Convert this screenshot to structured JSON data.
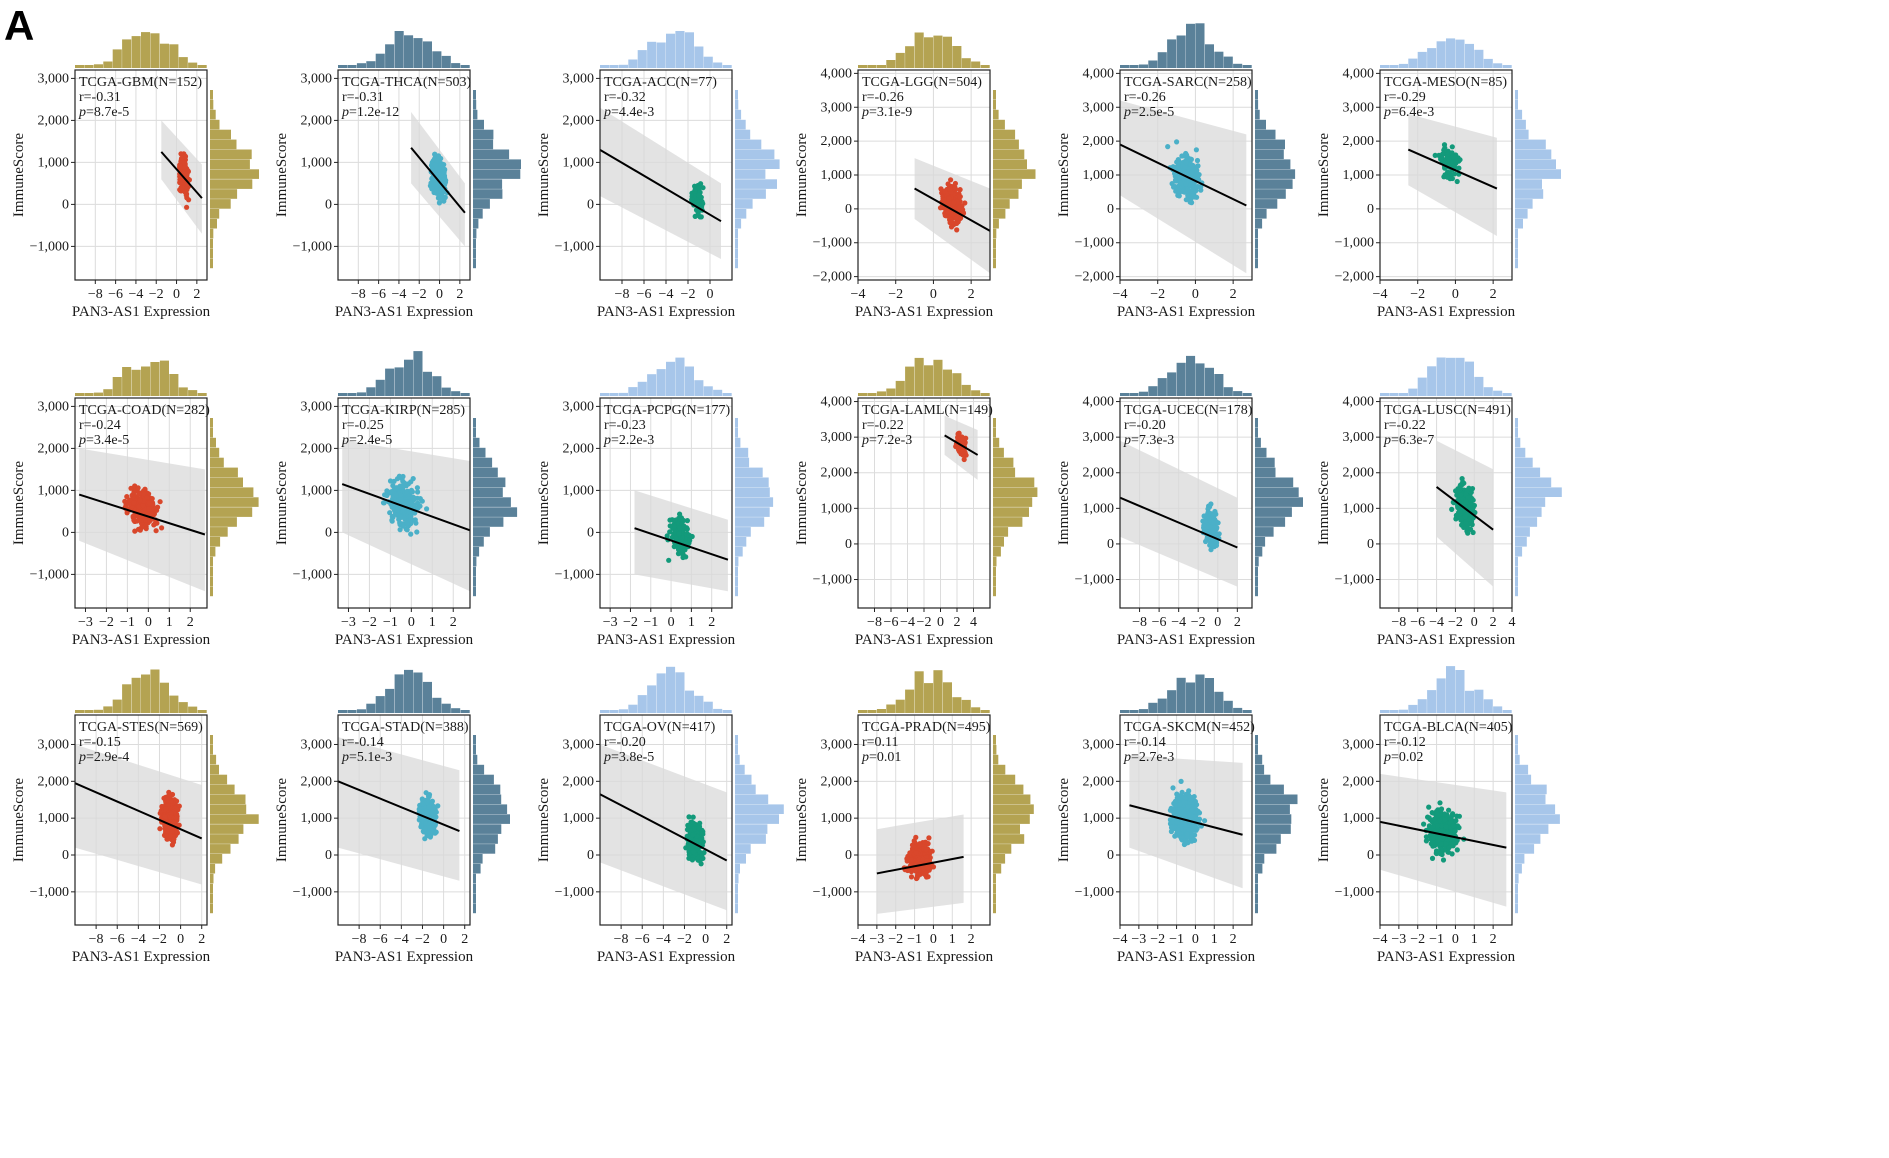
{
  "figure": {
    "panel_label": "A",
    "xlabel": "PAN3-AS1 Expression",
    "ylabel": "ImmuneScore",
    "colors": {
      "red": "#d9472b",
      "cyan": "#4bb0c8",
      "teal": "#139a7b",
      "olive": "#b4a352",
      "slate": "#5a8199",
      "lightblue": "#a7c6ea",
      "band": "#d9d9d9",
      "grid": "#dcdcdc"
    }
  },
  "chart_data": [
    {
      "type": "scatter",
      "title": "TCGA-GBM(N=152)",
      "r": "r=-0.31",
      "p": "=8.7e-5",
      "n": 152,
      "xlim": [
        -10,
        3
      ],
      "xticks": [
        -8,
        -6,
        -4,
        -2,
        0,
        2
      ],
      "ylim": [
        -1800,
        3200
      ],
      "yticks": [
        -1000,
        0,
        1000,
        2000,
        3000
      ],
      "reg_x": [
        -1.5,
        2.5
      ],
      "reg_y": [
        1250,
        150
      ],
      "band_x": [
        -1.5,
        2.5
      ],
      "band_lo": [
        600,
        -700
      ],
      "band_hi": [
        2000,
        950
      ],
      "pts_x": [
        -1.2,
        2.6
      ],
      "pts_y": [
        -1000,
        2600
      ],
      "pt_color": "red",
      "hist_color": "olive"
    },
    {
      "type": "scatter",
      "title": "TCGA-THCA(N=503)",
      "r": "r=-0.31",
      "p": "=1.2e-12",
      "n": 503,
      "xlim": [
        -10,
        3
      ],
      "xticks": [
        -8,
        -6,
        -4,
        -2,
        0,
        2
      ],
      "ylim": [
        -1800,
        3200
      ],
      "yticks": [
        -1000,
        0,
        1000,
        2000,
        3000
      ],
      "reg_x": [
        -2.8,
        2.5
      ],
      "reg_y": [
        1350,
        -200
      ],
      "band_x": [
        -2.8,
        2.5
      ],
      "band_lo": [
        500,
        -1000
      ],
      "band_hi": [
        2200,
        500
      ],
      "pts_x": [
        -3.0,
        2.8
      ],
      "pts_y": [
        -1100,
        2700
      ],
      "pt_color": "cyan",
      "hist_color": "slate"
    },
    {
      "type": "scatter",
      "title": "TCGA-ACC(N=77)",
      "r": "r=-0.32",
      "p": "=4.4e-3",
      "n": 77,
      "xlim": [
        -10,
        2
      ],
      "xticks": [
        -8,
        -6,
        -4,
        -2,
        0
      ],
      "ylim": [
        -1800,
        3200
      ],
      "yticks": [
        -1000,
        0,
        1000,
        2000,
        3000
      ],
      "reg_x": [
        -10,
        1
      ],
      "reg_y": [
        1300,
        -400
      ],
      "band_x": [
        -10,
        1
      ],
      "band_lo": [
        200,
        -1300
      ],
      "band_hi": [
        2300,
        500
      ],
      "pts_x": [
        -3.5,
        1.2
      ],
      "pts_y": [
        -1200,
        1900
      ],
      "pt_color": "teal",
      "hist_color": "lightblue"
    },
    {
      "type": "scatter",
      "title": "TCGA-LGG(N=504)",
      "r": "r=-0.26",
      "p": "=3.1e-9",
      "n": 504,
      "xlim": [
        -4,
        3
      ],
      "xticks": [
        -4,
        -2,
        0,
        2
      ],
      "ylim": [
        -2100,
        4100
      ],
      "yticks": [
        -2000,
        -1000,
        0,
        1000,
        2000,
        3000,
        4000
      ],
      "reg_x": [
        -1,
        3
      ],
      "reg_y": [
        600,
        -650
      ],
      "band_x": [
        -1,
        3
      ],
      "band_lo": [
        -300,
        -1900
      ],
      "band_hi": [
        1500,
        600
      ],
      "pts_x": [
        -1.0,
        3.0
      ],
      "pts_y": [
        -1700,
        2600
      ],
      "pt_color": "red",
      "hist_color": "olive"
    },
    {
      "type": "scatter",
      "title": "TCGA-SARC(N=258)",
      "r": "r=-0.26",
      "p": "=2.5e-5",
      "n": 258,
      "xlim": [
        -4,
        3
      ],
      "xticks": [
        -4,
        -2,
        0,
        2
      ],
      "ylim": [
        -2100,
        4100
      ],
      "yticks": [
        -2000,
        -1000,
        0,
        1000,
        2000,
        3000,
        4000
      ],
      "reg_x": [
        -4,
        2.7
      ],
      "reg_y": [
        1900,
        100
      ],
      "band_x": [
        -4,
        2.7
      ],
      "band_lo": [
        400,
        -1900
      ],
      "band_hi": [
        3200,
        2200
      ],
      "pts_x": [
        -3.5,
        2.5
      ],
      "pts_y": [
        -1700,
        3700
      ],
      "pt_color": "cyan",
      "hist_color": "slate"
    },
    {
      "type": "scatter",
      "title": "TCGA-MESO(N=85)",
      "r": "r=-0.29",
      "p": "=6.4e-3",
      "n": 85,
      "xlim": [
        -4,
        3
      ],
      "xticks": [
        -4,
        -2,
        0,
        2
      ],
      "ylim": [
        -2100,
        4100
      ],
      "yticks": [
        -2000,
        -1000,
        0,
        1000,
        2000,
        3000,
        4000
      ],
      "reg_x": [
        -2.5,
        2.2
      ],
      "reg_y": [
        1750,
        600
      ],
      "band_x": [
        -2.5,
        2.2
      ],
      "band_lo": [
        700,
        -800
      ],
      "band_hi": [
        2800,
        2100
      ],
      "pts_x": [
        -2.6,
        2.0
      ],
      "pts_y": [
        -300,
        3500
      ],
      "pt_color": "teal",
      "hist_color": "lightblue"
    },
    {
      "type": "scatter",
      "title": "TCGA-COAD(N=282)",
      "r": "r=-0.24",
      "p": "=3.4e-5",
      "n": 282,
      "xlim": [
        -3.5,
        2.8
      ],
      "xticks": [
        -3,
        -2,
        -1,
        0,
        1,
        2
      ],
      "ylim": [
        -1800,
        3200
      ],
      "yticks": [
        -1000,
        0,
        1000,
        2000,
        3000
      ],
      "reg_x": [
        -3.3,
        2.7
      ],
      "reg_y": [
        900,
        -50
      ],
      "band_x": [
        -3.3,
        2.7
      ],
      "band_lo": [
        -200,
        -1400
      ],
      "band_hi": [
        2000,
        1500
      ],
      "pts_x": [
        -3.3,
        2.7
      ],
      "pts_y": [
        -1100,
        2800
      ],
      "pt_color": "red",
      "hist_color": "olive"
    },
    {
      "type": "scatter",
      "title": "TCGA-KIRP(N=285)",
      "r": "r=-0.25",
      "p": "=2.4e-5",
      "n": 285,
      "xlim": [
        -3.5,
        2.8
      ],
      "xticks": [
        -3,
        -2,
        -1,
        0,
        1,
        2
      ],
      "ylim": [
        -1800,
        3200
      ],
      "yticks": [
        -1000,
        0,
        1000,
        2000,
        3000
      ],
      "reg_x": [
        -3.3,
        2.8
      ],
      "reg_y": [
        1150,
        50
      ],
      "band_x": [
        -3.3,
        2.8
      ],
      "band_lo": [
        0,
        -1400
      ],
      "band_hi": [
        2200,
        1700
      ],
      "pts_x": [
        -3.3,
        2.5
      ],
      "pts_y": [
        -1600,
        3300
      ],
      "pt_color": "cyan",
      "hist_color": "slate"
    },
    {
      "type": "scatter",
      "title": "TCGA-PCPG(N=177)",
      "r": "r=-0.23",
      "p": "=2.2e-3",
      "n": 177,
      "xlim": [
        -3.5,
        3
      ],
      "xticks": [
        -3,
        -2,
        -1,
        0,
        1,
        2
      ],
      "ylim": [
        -1800,
        3200
      ],
      "yticks": [
        -1000,
        0,
        1000,
        2000,
        3000
      ],
      "reg_x": [
        -1.8,
        2.8
      ],
      "reg_y": [
        100,
        -650
      ],
      "band_x": [
        -1.8,
        2.8
      ],
      "band_lo": [
        -1000,
        -1400
      ],
      "band_hi": [
        1000,
        300
      ],
      "pts_x": [
        -1.6,
        2.5
      ],
      "pts_y": [
        -1600,
        2000
      ],
      "pt_color": "teal",
      "hist_color": "lightblue"
    },
    {
      "type": "scatter",
      "title": "TCGA-LAML(N=149)",
      "r": "r=-0.22",
      "p": "=7.2e-3",
      "n": 149,
      "xlim": [
        -10,
        6
      ],
      "xticks": [
        -8,
        -6,
        -4,
        -2,
        0,
        2,
        4
      ],
      "ylim": [
        -1800,
        4100
      ],
      "yticks": [
        -1000,
        0,
        1000,
        2000,
        3000,
        4000
      ],
      "reg_x": [
        0.5,
        4.5
      ],
      "reg_y": [
        3050,
        2500
      ],
      "band_x": [
        0.5,
        4.5
      ],
      "band_lo": [
        2500,
        1800
      ],
      "band_hi": [
        3600,
        3200
      ],
      "pts_x": [
        0.3,
        4.8
      ],
      "pts_y": [
        1600,
        3900
      ],
      "pt_color": "red",
      "hist_color": "olive"
    },
    {
      "type": "scatter",
      "title": "TCGA-UCEC(N=178)",
      "r": "r=-0.20",
      "p": "=7.3e-3",
      "n": 178,
      "xlim": [
        -10,
        3.5
      ],
      "xticks": [
        -8,
        -6,
        -4,
        -2,
        0,
        2
      ],
      "ylim": [
        -1800,
        4100
      ],
      "yticks": [
        -1000,
        0,
        1000,
        2000,
        3000,
        4000
      ],
      "reg_x": [
        -10,
        2
      ],
      "reg_y": [
        1300,
        -100
      ],
      "band_x": [
        -10,
        2
      ],
      "band_lo": [
        200,
        -1200
      ],
      "band_hi": [
        2900,
        1300
      ],
      "pts_x": [
        -3.5,
        2.2
      ],
      "pts_y": [
        -1300,
        3000
      ],
      "pt_color": "cyan",
      "hist_color": "slate"
    },
    {
      "type": "scatter",
      "title": "TCGA-LUSC(N=491)",
      "r": "r=-0.22",
      "p": "=6.3e-7",
      "n": 491,
      "xlim": [
        -10,
        4
      ],
      "xticks": [
        -8,
        -6,
        -4,
        -2,
        0,
        2,
        4
      ],
      "ylim": [
        -1800,
        4100
      ],
      "yticks": [
        -1000,
        0,
        1000,
        2000,
        3000,
        4000
      ],
      "reg_x": [
        -4,
        2
      ],
      "reg_y": [
        1600,
        400
      ],
      "band_x": [
        -4,
        2
      ],
      "band_lo": [
        200,
        -1200
      ],
      "band_hi": [
        2900,
        2100
      ],
      "pts_x": [
        -4.5,
        2.5
      ],
      "pts_y": [
        -1200,
        3500
      ],
      "pt_color": "teal",
      "hist_color": "lightblue"
    },
    {
      "type": "scatter",
      "title": "TCGA-STES(N=569)",
      "r": "r=-0.15",
      "p": "=2.9e-4",
      "n": 569,
      "xlim": [
        -10,
        2.5
      ],
      "xticks": [
        -8,
        -6,
        -4,
        -2,
        0,
        2
      ],
      "ylim": [
        -1900,
        3800
      ],
      "yticks": [
        -1000,
        0,
        1000,
        2000,
        3000
      ],
      "reg_x": [
        -10,
        2
      ],
      "reg_y": [
        1950,
        450
      ],
      "band_x": [
        -10,
        2
      ],
      "band_lo": [
        200,
        -800
      ],
      "band_hi": [
        3000,
        1900
      ],
      "pts_x": [
        -4.0,
        2.0
      ],
      "pts_y": [
        -1100,
        3600
      ],
      "pt_color": "red",
      "hist_color": "olive"
    },
    {
      "type": "scatter",
      "title": "TCGA-STAD(N=388)",
      "r": "r=-0.14",
      "p": "=5.1e-3",
      "n": 388,
      "xlim": [
        -10,
        2.5
      ],
      "xticks": [
        -8,
        -6,
        -4,
        -2,
        0,
        2
      ],
      "ylim": [
        -1900,
        3800
      ],
      "yticks": [
        -1000,
        0,
        1000,
        2000,
        3000
      ],
      "reg_x": [
        -10,
        1.5
      ],
      "reg_y": [
        2000,
        650
      ],
      "band_x": [
        -10,
        1.5
      ],
      "band_lo": [
        200,
        -700
      ],
      "band_hi": [
        3200,
        2300
      ],
      "pts_x": [
        -4.5,
        1.5
      ],
      "pts_y": [
        -900,
        3300
      ],
      "pt_color": "cyan",
      "hist_color": "slate"
    },
    {
      "type": "scatter",
      "title": "TCGA-OV(N=417)",
      "r": "r=-0.20",
      "p": "=3.8e-5",
      "n": 417,
      "xlim": [
        -10,
        2.5
      ],
      "xticks": [
        -8,
        -6,
        -4,
        -2,
        0,
        2
      ],
      "ylim": [
        -1900,
        3800
      ],
      "yticks": [
        -1000,
        0,
        1000,
        2000,
        3000
      ],
      "reg_x": [
        -10,
        2
      ],
      "reg_y": [
        1650,
        -150
      ],
      "band_x": [
        -10,
        2
      ],
      "band_lo": [
        -200,
        -1500
      ],
      "band_hi": [
        3000,
        1700
      ],
      "pts_x": [
        -4.0,
        2.0
      ],
      "pts_y": [
        -1600,
        2400
      ],
      "pt_color": "teal",
      "hist_color": "lightblue"
    },
    {
      "type": "scatter",
      "title": "TCGA-PRAD(N=495)",
      "r": "r=0.11",
      "p": "=0.01",
      "n": 495,
      "xlim": [
        -4,
        3
      ],
      "xticks": [
        -4,
        -3,
        -2,
        -1,
        0,
        1,
        2
      ],
      "ylim": [
        -1900,
        3800
      ],
      "yticks": [
        -1000,
        0,
        1000,
        2000,
        3000
      ],
      "reg_x": [
        -3,
        1.6
      ],
      "reg_y": [
        -500,
        -50
      ],
      "band_x": [
        -3,
        1.6
      ],
      "band_lo": [
        -1600,
        -1300
      ],
      "band_hi": [
        700,
        1100
      ],
      "pts_x": [
        -3.0,
        1.6
      ],
      "pts_y": [
        -1600,
        2000
      ],
      "pt_color": "red",
      "hist_color": "olive"
    },
    {
      "type": "scatter",
      "title": "TCGA-SKCM(N=452)",
      "r": "r=-0.14",
      "p": "=2.7e-3",
      "n": 452,
      "xlim": [
        -4,
        3
      ],
      "xticks": [
        -4,
        -3,
        -2,
        -1,
        0,
        1,
        2
      ],
      "ylim": [
        -1900,
        3800
      ],
      "yticks": [
        -1000,
        0,
        1000,
        2000,
        3000
      ],
      "reg_x": [
        -3.5,
        2.5
      ],
      "reg_y": [
        1350,
        550
      ],
      "band_x": [
        -3.5,
        2.5
      ],
      "band_lo": [
        200,
        -900
      ],
      "band_hi": [
        2700,
        2500
      ],
      "pts_x": [
        -3.6,
        2.5
      ],
      "pts_y": [
        -1500,
        3700
      ],
      "pt_color": "cyan",
      "hist_color": "slate"
    },
    {
      "type": "scatter",
      "title": "TCGA-BLCA(N=405)",
      "r": "r=-0.12",
      "p": "=0.02",
      "n": 405,
      "xlim": [
        -4,
        3
      ],
      "xticks": [
        -4,
        -3,
        -2,
        -1,
        0,
        1,
        2
      ],
      "ylim": [
        -1900,
        3800
      ],
      "yticks": [
        -1000,
        0,
        1000,
        2000,
        3000
      ],
      "reg_x": [
        -4,
        2.7
      ],
      "reg_y": [
        900,
        200
      ],
      "band_x": [
        -4,
        2.7
      ],
      "band_lo": [
        -400,
        -1400
      ],
      "band_hi": [
        2200,
        1700
      ],
      "pts_x": [
        -3.8,
        2.5
      ],
      "pts_y": [
        -1500,
        3100
      ],
      "pt_color": "teal",
      "hist_color": "lightblue"
    }
  ]
}
